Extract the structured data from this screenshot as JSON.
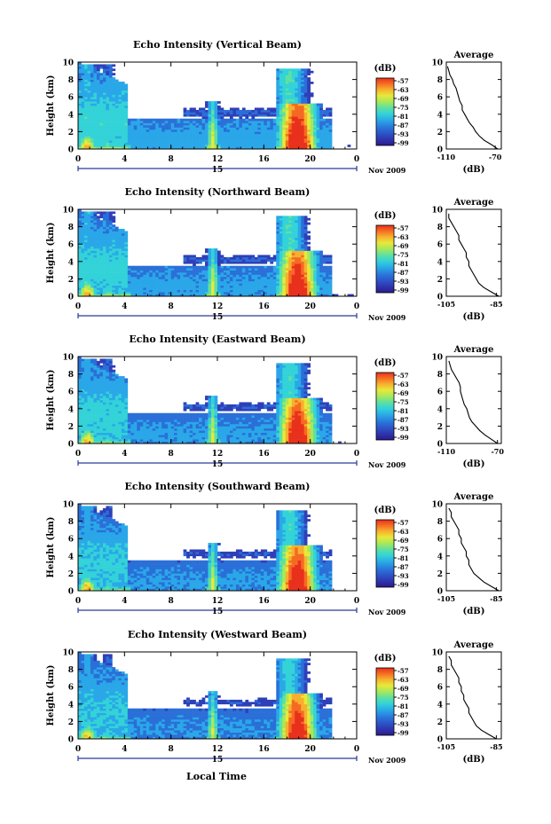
{
  "figure": {
    "xlabel": "Local Time",
    "colors": {
      "scale": [
        "#2b1a8c",
        "#2f3fb8",
        "#2a6fd8",
        "#2aa7e8",
        "#33d3d8",
        "#5fe0a0",
        "#a8e85a",
        "#e8e83a",
        "#f7b02e",
        "#f56a22",
        "#e8301c"
      ],
      "background": "#ffffff"
    }
  },
  "chart_data": [
    {
      "type": "heatmap",
      "title": "Echo Intensity (Vertical Beam)",
      "ylabel": "Height (km)",
      "yticks": [
        "0",
        "2",
        "4",
        "6",
        "8",
        "10"
      ],
      "ylim": [
        0,
        10
      ],
      "xticks": [
        "0",
        "4",
        "8",
        "12",
        "16",
        "20",
        "0"
      ],
      "xlim": [
        0,
        24
      ],
      "date_label": "15",
      "date_tag": "Nov 2009",
      "colorbar": {
        "label": "(dB)",
        "ticks": [
          "-57",
          "-63",
          "-69",
          "-75",
          "-81",
          "-87",
          "-93",
          "-99"
        ]
      },
      "profile": {
        "title": "Average",
        "xlabel": "(dB)",
        "xticks": [
          "-110",
          "-70"
        ],
        "xlim": [
          -110,
          -65
        ],
        "yticks": [
          "0",
          "2",
          "4",
          "6",
          "8",
          "10"
        ],
        "height": [
          0,
          0.5,
          1,
          1.5,
          2,
          2.5,
          3,
          3.5,
          4,
          4.5,
          5,
          5.5,
          6,
          6.5,
          7,
          7.5,
          8,
          8.5,
          9,
          9.5
        ],
        "value": [
          -68,
          -73,
          -79,
          -83,
          -86,
          -88,
          -91,
          -93,
          -95,
          -97,
          -97,
          -99,
          -100,
          -101,
          -102,
          -104,
          -105,
          -107,
          -108,
          -109
        ]
      }
    },
    {
      "type": "heatmap",
      "title": "Echo Intensity (Northward Beam)",
      "ylabel": "Height (km)",
      "yticks": [
        "0",
        "2",
        "4",
        "6",
        "8",
        "10"
      ],
      "ylim": [
        0,
        10
      ],
      "xticks": [
        "0",
        "4",
        "8",
        "12",
        "16",
        "20",
        "0"
      ],
      "xlim": [
        0,
        24
      ],
      "date_label": "15",
      "date_tag": "Nov 2009",
      "colorbar": {
        "label": "(dB)",
        "ticks": [
          "-57",
          "-63",
          "-69",
          "-75",
          "-81",
          "-87",
          "-93",
          "-99"
        ]
      },
      "profile": {
        "title": "Average",
        "xlabel": "(dB)",
        "xticks": [
          "-105",
          "-85"
        ],
        "xlim": [
          -105,
          -83
        ],
        "yticks": [
          "0",
          "2",
          "4",
          "6",
          "8",
          "10"
        ],
        "height": [
          0,
          0.5,
          1,
          1.5,
          2,
          2.5,
          3,
          3.5,
          4,
          4.5,
          5,
          5.5,
          6,
          6.5,
          7,
          7.5,
          8,
          8.5,
          9,
          9.5
        ],
        "value": [
          -84,
          -87,
          -90,
          -92,
          -93,
          -94,
          -95,
          -96,
          -96,
          -97,
          -97,
          -98,
          -99,
          -100,
          -100,
          -101,
          -102,
          -103,
          -104,
          -104
        ]
      }
    },
    {
      "type": "heatmap",
      "title": "Echo Intensity (Eastward Beam)",
      "ylabel": "Height (km)",
      "yticks": [
        "0",
        "2",
        "4",
        "6",
        "8",
        "10"
      ],
      "ylim": [
        0,
        10
      ],
      "xticks": [
        "0",
        "4",
        "8",
        "12",
        "16",
        "20",
        "0"
      ],
      "xlim": [
        0,
        24
      ],
      "date_label": "15",
      "date_tag": "Nov 2009",
      "colorbar": {
        "label": "(dB)",
        "ticks": [
          "-57",
          "-63",
          "-69",
          "-75",
          "-81",
          "-87",
          "-93",
          "-99"
        ]
      },
      "profile": {
        "title": "Average",
        "xlabel": "(dB)",
        "xticks": [
          "-110",
          "-70"
        ],
        "xlim": [
          -110,
          -67
        ],
        "yticks": [
          "0",
          "2",
          "4",
          "6",
          "8",
          "10"
        ],
        "height": [
          0,
          0.5,
          1,
          1.5,
          2,
          2.5,
          3,
          3.5,
          4,
          4.5,
          5,
          5.5,
          6,
          6.5,
          7,
          7.5,
          8,
          8.5,
          9,
          9.5
        ],
        "value": [
          -70,
          -75,
          -80,
          -84,
          -87,
          -90,
          -92,
          -93,
          -94,
          -96,
          -97,
          -98,
          -99,
          -99,
          -100,
          -102,
          -104,
          -106,
          -107,
          -108
        ]
      }
    },
    {
      "type": "heatmap",
      "title": "Echo Intensity (Southward Beam)",
      "ylabel": "Height (km)",
      "yticks": [
        "0",
        "2",
        "4",
        "6",
        "8",
        "10"
      ],
      "ylim": [
        0,
        10
      ],
      "xticks": [
        "0",
        "4",
        "8",
        "12",
        "16",
        "20",
        "0"
      ],
      "xlim": [
        0,
        24
      ],
      "date_label": "15",
      "date_tag": "Nov 2009",
      "colorbar": {
        "label": "(dB)",
        "ticks": [
          "-57",
          "-63",
          "-69",
          "-75",
          "-81",
          "-87",
          "-93",
          "-99"
        ]
      },
      "profile": {
        "title": "Average",
        "xlabel": "(dB)",
        "xticks": [
          "-105",
          "-85"
        ],
        "xlim": [
          -105,
          -83
        ],
        "yticks": [
          "0",
          "2",
          "4",
          "6",
          "8",
          "10"
        ],
        "height": [
          0,
          0.5,
          1,
          1.5,
          2,
          2.5,
          3,
          3.5,
          4,
          4.5,
          5,
          5.5,
          6,
          6.5,
          7,
          7.5,
          8,
          8.5,
          9,
          9.5
        ],
        "value": [
          -84,
          -87,
          -90,
          -92,
          -94,
          -95,
          -96,
          -96,
          -97,
          -97,
          -98,
          -99,
          -99,
          -100,
          -100,
          -101,
          -102,
          -103,
          -103,
          -104
        ]
      }
    },
    {
      "type": "heatmap",
      "title": "Echo Intensity (Westward Beam)",
      "ylabel": "Height (km)",
      "yticks": [
        "0",
        "2",
        "4",
        "6",
        "8",
        "10"
      ],
      "ylim": [
        0,
        10
      ],
      "xticks": [
        "0",
        "4",
        "8",
        "12",
        "16",
        "20",
        "0"
      ],
      "xlim": [
        0,
        24
      ],
      "date_label": "15",
      "date_tag": "Nov 2009",
      "colorbar": {
        "label": "(dB)",
        "ticks": [
          "-57",
          "-63",
          "-69",
          "-75",
          "-81",
          "-87",
          "-93",
          "-99"
        ]
      },
      "profile": {
        "title": "Average",
        "xlabel": "(dB)",
        "xticks": [
          "-105",
          "-85"
        ],
        "xlim": [
          -105,
          -83
        ],
        "yticks": [
          "0",
          "2",
          "4",
          "6",
          "8",
          "10"
        ],
        "height": [
          0,
          0.5,
          1,
          1.5,
          2,
          2.5,
          3,
          3.5,
          4,
          4.5,
          5,
          5.5,
          6,
          6.5,
          7,
          7.5,
          8,
          8.5,
          9,
          9.5
        ],
        "value": [
          -85,
          -88,
          -91,
          -93,
          -94,
          -95,
          -96,
          -96,
          -97,
          -98,
          -98,
          -99,
          -99,
          -100,
          -100,
          -101,
          -102,
          -103,
          -103,
          -104
        ]
      }
    }
  ]
}
